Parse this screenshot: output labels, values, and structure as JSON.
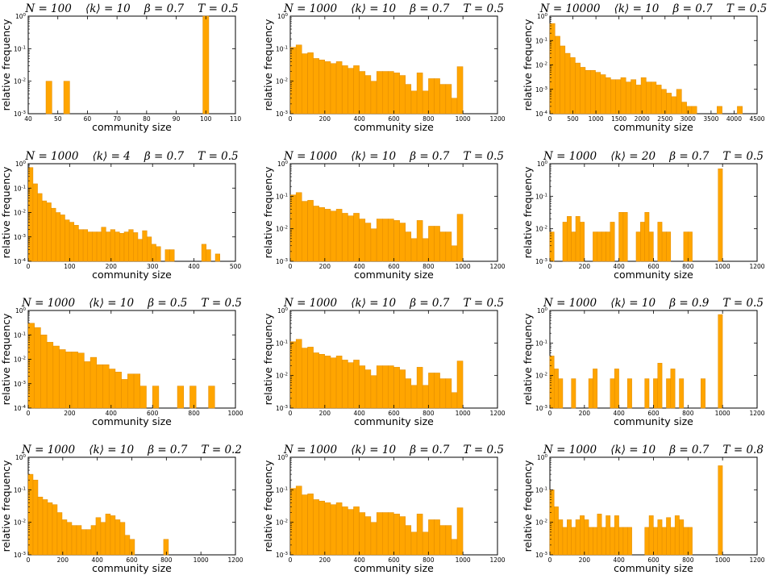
{
  "figure_title": "Community size distributions for varied N, mean degree, beta and T",
  "colors": {
    "bar_fill": "#ffa500",
    "bar_edge": "#e08a00",
    "axis": "#000000"
  },
  "chart_data": [
    {
      "type": "bar",
      "title": "N = 100    ⟨k⟩ = 10    β = 0.7    T = 0.5",
      "xlabel": "community size",
      "ylabel": "relative frequency",
      "xlim": [
        40,
        110
      ],
      "xticks": [
        "40",
        "50",
        "60",
        "70",
        "80",
        "90",
        "100",
        "110"
      ],
      "ylog": [
        -3,
        0
      ],
      "yticks": [
        "10^-3",
        "10^-2",
        "10^-1",
        "10^0"
      ],
      "bin_width": 2,
      "x": [
        47,
        53,
        100
      ],
      "values": [
        0.01,
        0.01,
        1.0
      ]
    },
    {
      "type": "bar",
      "title": "N = 1000    ⟨k⟩ = 10    β = 0.7    T = 0.5",
      "xlabel": "community size",
      "ylabel": "relative frequency",
      "xlim": [
        0,
        1200
      ],
      "xticks": [
        "0",
        "200",
        "400",
        "600",
        "800",
        "1000",
        "1200"
      ],
      "ylog": [
        -3,
        0
      ],
      "yticks": [
        "10^-3",
        "10^-2",
        "10^-1",
        "10^0"
      ],
      "bin_width": 33,
      "x": [
        17,
        50,
        83,
        117,
        150,
        183,
        217,
        250,
        283,
        317,
        350,
        383,
        417,
        450,
        483,
        517,
        550,
        583,
        617,
        650,
        683,
        717,
        750,
        783,
        817,
        850,
        883,
        917,
        950,
        983
      ],
      "values": [
        0.11,
        0.13,
        0.07,
        0.075,
        0.05,
        0.045,
        0.04,
        0.035,
        0.04,
        0.03,
        0.025,
        0.03,
        0.02,
        0.015,
        0.01,
        0.02,
        0.02,
        0.02,
        0.018,
        0.015,
        0.008,
        0.005,
        0.018,
        0.005,
        0.012,
        0.012,
        0.008,
        0.008,
        0.003,
        0.028
      ]
    },
    {
      "type": "bar",
      "title": "N = 10000    ⟨k⟩ = 10    β = 0.7    T = 0.5",
      "xlabel": "community size",
      "ylabel": "relative frequency",
      "xlim": [
        0,
        4500
      ],
      "xticks": [
        "0",
        "500",
        "1000",
        "1500",
        "2000",
        "2500",
        "3000",
        "3500",
        "4000",
        "4500"
      ],
      "ylog": [
        -4,
        0
      ],
      "yticks": [
        "10^-4",
        "10^-3",
        "10^-2",
        "10^-1",
        "10^0"
      ],
      "bin_width": 110,
      "x": [
        55,
        165,
        275,
        385,
        495,
        605,
        715,
        825,
        935,
        1045,
        1155,
        1265,
        1375,
        1485,
        1595,
        1705,
        1815,
        1925,
        2035,
        2145,
        2255,
        2365,
        2475,
        2585,
        2695,
        2805,
        2915,
        3025,
        3135,
        3685,
        4125
      ],
      "values": [
        0.5,
        0.15,
        0.06,
        0.03,
        0.02,
        0.012,
        0.008,
        0.006,
        0.006,
        0.005,
        0.004,
        0.003,
        0.0025,
        0.0025,
        0.003,
        0.002,
        0.0025,
        0.0015,
        0.003,
        0.002,
        0.002,
        0.0015,
        0.001,
        0.0007,
        0.0005,
        0.001,
        0.0003,
        0.0002,
        0.0002,
        0.0002,
        0.0002
      ]
    },
    {
      "type": "bar",
      "title": "N = 1000    ⟨k⟩ = 4    β = 0.7    T = 0.5",
      "xlabel": "community size",
      "ylabel": "relative frequency",
      "xlim": [
        0,
        500
      ],
      "xticks": [
        "0",
        "100",
        "200",
        "300",
        "400",
        "500"
      ],
      "ylog": [
        -4,
        0
      ],
      "yticks": [
        "10^-4",
        "10^-3",
        "10^-2",
        "10^-1",
        "10^0"
      ],
      "bin_width": 11,
      "x": [
        6,
        17,
        28,
        39,
        50,
        61,
        72,
        83,
        94,
        105,
        116,
        127,
        138,
        149,
        160,
        171,
        182,
        193,
        204,
        215,
        226,
        237,
        248,
        259,
        270,
        281,
        292,
        303,
        314,
        336,
        347,
        424,
        435,
        457
      ],
      "values": [
        0.7,
        0.15,
        0.06,
        0.03,
        0.025,
        0.015,
        0.01,
        0.008,
        0.005,
        0.004,
        0.003,
        0.002,
        0.002,
        0.0016,
        0.0016,
        0.0016,
        0.0025,
        0.0016,
        0.002,
        0.0016,
        0.0014,
        0.0016,
        0.002,
        0.0015,
        0.0008,
        0.0018,
        0.001,
        0.0005,
        0.0004,
        0.0003,
        0.0003,
        0.0005,
        0.0003,
        0.0002
      ]
    },
    {
      "type": "bar",
      "title": "N = 1000    ⟨k⟩ = 10    β = 0.7    T = 0.5",
      "xlabel": "community size",
      "ylabel": "relative frequency",
      "xlim": [
        0,
        1200
      ],
      "xticks": [
        "0",
        "200",
        "400",
        "600",
        "800",
        "1000",
        "1200"
      ],
      "ylog": [
        -3,
        0
      ],
      "yticks": [
        "10^-3",
        "10^-2",
        "10^-1",
        "10^0"
      ],
      "bin_width": 33,
      "x": [
        17,
        50,
        83,
        117,
        150,
        183,
        217,
        250,
        283,
        317,
        350,
        383,
        417,
        450,
        483,
        517,
        550,
        583,
        617,
        650,
        683,
        717,
        750,
        783,
        817,
        850,
        883,
        917,
        950,
        983
      ],
      "values": [
        0.11,
        0.13,
        0.07,
        0.075,
        0.05,
        0.045,
        0.04,
        0.035,
        0.04,
        0.03,
        0.025,
        0.03,
        0.02,
        0.015,
        0.01,
        0.02,
        0.02,
        0.02,
        0.018,
        0.015,
        0.008,
        0.005,
        0.018,
        0.005,
        0.012,
        0.012,
        0.008,
        0.008,
        0.003,
        0.028
      ]
    },
    {
      "type": "bar",
      "title": "N = 1000    ⟨k⟩ = 20    β = 0.7    T = 0.5",
      "xlabel": "community size",
      "ylabel": "relative frequency",
      "xlim": [
        0,
        1200
      ],
      "xticks": [
        "0",
        "200",
        "400",
        "600",
        "800",
        "1000",
        "1200"
      ],
      "ylog": [
        -3,
        0
      ],
      "yticks": [
        "10^-3",
        "10^-2",
        "10^-1",
        "10^0"
      ],
      "bin_width": 25,
      "x": [
        12,
        87,
        112,
        137,
        162,
        187,
        262,
        287,
        312,
        337,
        362,
        412,
        437,
        512,
        537,
        562,
        587,
        637,
        662,
        687,
        787,
        812,
        987
      ],
      "values": [
        0.008,
        0.016,
        0.024,
        0.008,
        0.024,
        0.016,
        0.008,
        0.008,
        0.008,
        0.008,
        0.016,
        0.032,
        0.032,
        0.008,
        0.016,
        0.032,
        0.008,
        0.016,
        0.008,
        0.008,
        0.008,
        0.008,
        0.7
      ]
    },
    {
      "type": "bar",
      "title": "N = 1000    ⟨k⟩ = 10    β = 0.5    T = 0.5",
      "xlabel": "community size",
      "ylabel": "relative frequency",
      "xlim": [
        0,
        1000
      ],
      "xticks": [
        "0",
        "200",
        "400",
        "600",
        "800",
        "1000"
      ],
      "ylog": [
        -4,
        0
      ],
      "yticks": [
        "10^-4",
        "10^-3",
        "10^-2",
        "10^-1",
        "10^0"
      ],
      "bin_width": 30,
      "x": [
        15,
        45,
        75,
        105,
        135,
        165,
        195,
        225,
        255,
        285,
        315,
        345,
        375,
        405,
        435,
        465,
        495,
        525,
        555,
        615,
        735,
        795,
        885
      ],
      "values": [
        0.3,
        0.2,
        0.1,
        0.05,
        0.035,
        0.025,
        0.02,
        0.02,
        0.018,
        0.008,
        0.012,
        0.006,
        0.006,
        0.004,
        0.003,
        0.0015,
        0.0025,
        0.0025,
        0.0008,
        0.0008,
        0.0008,
        0.0008,
        0.0008
      ]
    },
    {
      "type": "bar",
      "title": "N = 1000    ⟨k⟩ = 10    β = 0.7    T = 0.5",
      "xlabel": "community size",
      "ylabel": "relative frequency",
      "xlim": [
        0,
        1200
      ],
      "xticks": [
        "0",
        "200",
        "400",
        "600",
        "800",
        "1000",
        "1200"
      ],
      "ylog": [
        -3,
        0
      ],
      "yticks": [
        "10^-3",
        "10^-2",
        "10^-1",
        "10^0"
      ],
      "bin_width": 33,
      "x": [
        17,
        50,
        83,
        117,
        150,
        183,
        217,
        250,
        283,
        317,
        350,
        383,
        417,
        450,
        483,
        517,
        550,
        583,
        617,
        650,
        683,
        717,
        750,
        783,
        817,
        850,
        883,
        917,
        950,
        983
      ],
      "values": [
        0.11,
        0.13,
        0.07,
        0.075,
        0.05,
        0.045,
        0.04,
        0.035,
        0.04,
        0.03,
        0.025,
        0.03,
        0.02,
        0.015,
        0.01,
        0.02,
        0.02,
        0.02,
        0.018,
        0.015,
        0.008,
        0.005,
        0.018,
        0.005,
        0.012,
        0.012,
        0.008,
        0.008,
        0.003,
        0.028
      ]
    },
    {
      "type": "bar",
      "title": "N = 1000    ⟨k⟩ = 10    β = 0.9    T = 0.5",
      "xlabel": "community size",
      "ylabel": "relative frequency",
      "xlim": [
        0,
        1200
      ],
      "xticks": [
        "0",
        "200",
        "400",
        "600",
        "800",
        "1000",
        "1200"
      ],
      "ylog": [
        -3,
        0
      ],
      "yticks": [
        "10^-3",
        "10^-2",
        "10^-1",
        "10^0"
      ],
      "bin_width": 25,
      "x": [
        12,
        37,
        62,
        137,
        237,
        262,
        362,
        387,
        462,
        562,
        612,
        637,
        687,
        712,
        762,
        887,
        987
      ],
      "values": [
        0.04,
        0.016,
        0.008,
        0.008,
        0.008,
        0.016,
        0.008,
        0.016,
        0.008,
        0.008,
        0.008,
        0.024,
        0.008,
        0.016,
        0.008,
        0.008,
        0.75
      ]
    },
    {
      "type": "bar",
      "title": "N = 1000    ⟨k⟩ = 10    β = 0.7    T = 0.2",
      "xlabel": "community size",
      "ylabel": "relative frequency",
      "xlim": [
        0,
        1200
      ],
      "xticks": [
        "0",
        "200",
        "400",
        "600",
        "800",
        "1000",
        "1200"
      ],
      "ylog": [
        -3,
        0
      ],
      "yticks": [
        "10^-3",
        "10^-2",
        "10^-1",
        "10^0"
      ],
      "bin_width": 28,
      "x": [
        14,
        42,
        70,
        98,
        126,
        154,
        182,
        210,
        238,
        266,
        294,
        322,
        350,
        378,
        406,
        434,
        462,
        490,
        518,
        546,
        574,
        602,
        742,
        798,
        826,
        966
      ],
      "values": [
        0.3,
        0.2,
        0.06,
        0.05,
        0.04,
        0.035,
        0.02,
        0.012,
        0.01,
        0.008,
        0.008,
        0.006,
        0.006,
        0.008,
        0.014,
        0.01,
        0.018,
        0.016,
        0.012,
        0.01,
        0.004,
        0.003,
        0.001,
        0.003,
        0.001,
        0.001
      ]
    },
    {
      "type": "bar",
      "title": "N = 1000    ⟨k⟩ = 10    β = 0.7    T = 0.5",
      "xlabel": "community size",
      "ylabel": "relative frequency",
      "xlim": [
        0,
        1200
      ],
      "xticks": [
        "0",
        "200",
        "400",
        "600",
        "800",
        "1000",
        "1200"
      ],
      "ylog": [
        -3,
        0
      ],
      "yticks": [
        "10^-3",
        "10^-2",
        "10^-1",
        "10^0"
      ],
      "bin_width": 33,
      "x": [
        17,
        50,
        83,
        117,
        150,
        183,
        217,
        250,
        283,
        317,
        350,
        383,
        417,
        450,
        483,
        517,
        550,
        583,
        617,
        650,
        683,
        717,
        750,
        783,
        817,
        850,
        883,
        917,
        950,
        983
      ],
      "values": [
        0.11,
        0.13,
        0.07,
        0.075,
        0.05,
        0.045,
        0.04,
        0.035,
        0.04,
        0.03,
        0.025,
        0.03,
        0.02,
        0.015,
        0.01,
        0.02,
        0.02,
        0.02,
        0.018,
        0.015,
        0.008,
        0.005,
        0.018,
        0.005,
        0.012,
        0.012,
        0.008,
        0.008,
        0.003,
        0.028
      ]
    },
    {
      "type": "bar",
      "title": "N = 1000    ⟨k⟩ = 10    β = 0.7    T = 0.8",
      "xlabel": "community size",
      "ylabel": "relative frequency",
      "xlim": [
        0,
        1200
      ],
      "xticks": [
        "0",
        "200",
        "400",
        "600",
        "800",
        "1000",
        "1200"
      ],
      "ylog": [
        -3,
        0
      ],
      "yticks": [
        "10^-3",
        "10^-2",
        "10^-1",
        "10^0"
      ],
      "bin_width": 25,
      "x": [
        12,
        37,
        62,
        87,
        112,
        137,
        162,
        187,
        212,
        237,
        262,
        287,
        312,
        337,
        362,
        387,
        412,
        437,
        462,
        562,
        587,
        612,
        637,
        662,
        687,
        712,
        737,
        762,
        787,
        812,
        987
      ],
      "values": [
        0.1,
        0.03,
        0.012,
        0.007,
        0.012,
        0.007,
        0.012,
        0.016,
        0.012,
        0.007,
        0.007,
        0.018,
        0.007,
        0.016,
        0.007,
        0.016,
        0.007,
        0.007,
        0.007,
        0.007,
        0.016,
        0.007,
        0.012,
        0.007,
        0.014,
        0.007,
        0.016,
        0.012,
        0.007,
        0.007,
        0.55
      ]
    }
  ]
}
